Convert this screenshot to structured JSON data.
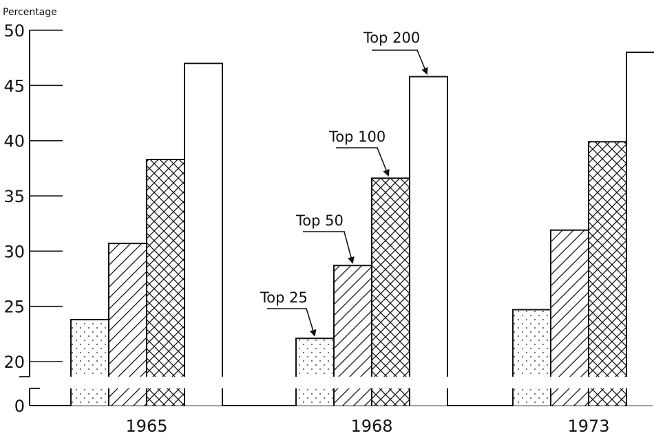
{
  "chart_data": {
    "type": "bar",
    "title": "",
    "xlabel": "",
    "ylabel": "Percentage",
    "categories": [
      "1965",
      "1968",
      "1973"
    ],
    "series": [
      {
        "name": "Top 25",
        "pattern": "dots",
        "values": [
          23.8,
          22.1,
          24.7
        ]
      },
      {
        "name": "Top 50",
        "pattern": "diagonal",
        "values": [
          30.7,
          28.7,
          31.9
        ]
      },
      {
        "name": "Top 100",
        "pattern": "crosshatch",
        "values": [
          38.3,
          36.6,
          39.9
        ]
      },
      {
        "name": "Top 200",
        "pattern": "blank",
        "values": [
          47.0,
          45.8,
          48.0
        ]
      }
    ],
    "ylim": [
      20,
      50
    ],
    "broken_axis": true,
    "baseline_tick": "0",
    "yticks": [
      20,
      25,
      30,
      35,
      40,
      45,
      50
    ],
    "annotations": [
      {
        "text": "Top 25",
        "category": "1968",
        "series": "Top 25"
      },
      {
        "text": "Top 50",
        "category": "1968",
        "series": "Top 50"
      },
      {
        "text": "Top 100",
        "category": "1968",
        "series": "Top 100"
      },
      {
        "text": "Top 200",
        "category": "1968",
        "series": "Top 200"
      }
    ],
    "grid": false,
    "legend": "none",
    "colors": {
      "ink": "#111111",
      "background": "#ffffff"
    }
  }
}
